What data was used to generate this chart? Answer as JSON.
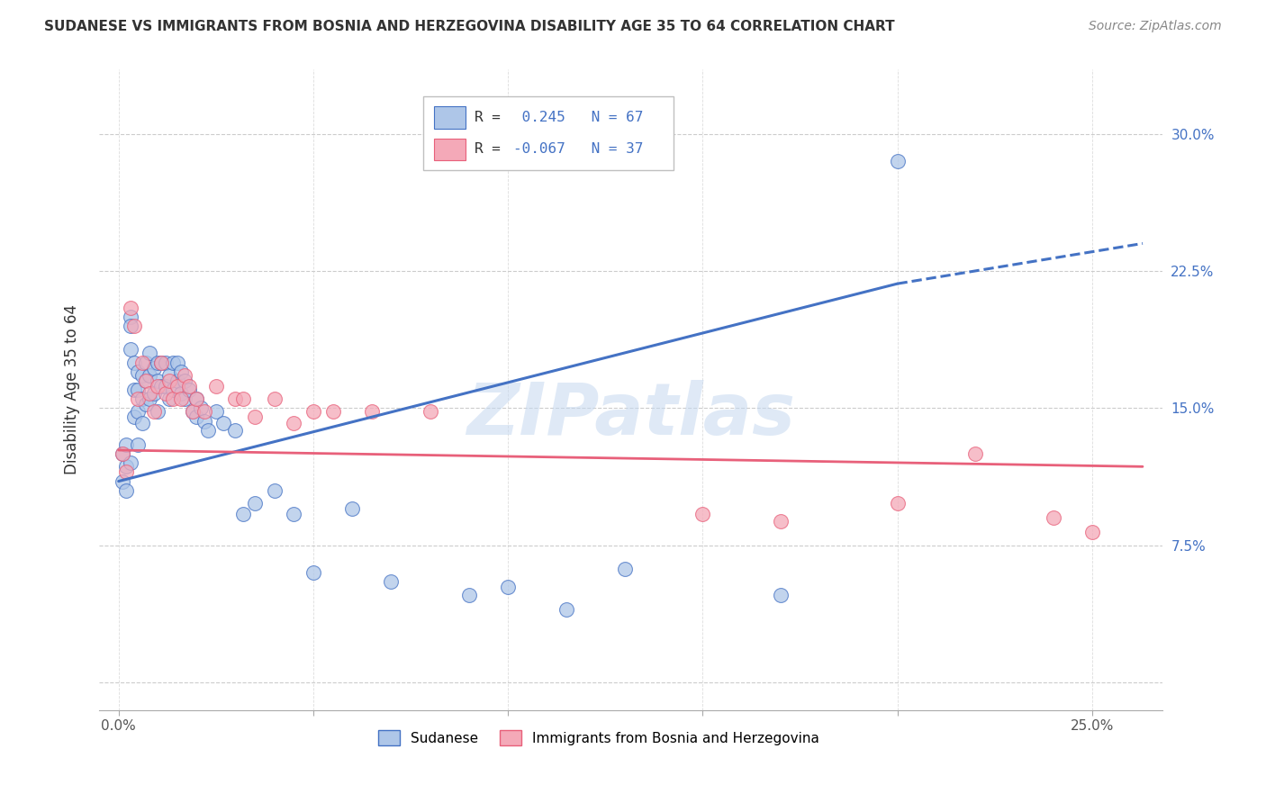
{
  "title": "SUDANESE VS IMMIGRANTS FROM BOSNIA AND HERZEGOVINA DISABILITY AGE 35 TO 64 CORRELATION CHART",
  "source": "Source: ZipAtlas.com",
  "xlabel_ticks": [
    0.0,
    0.05,
    0.1,
    0.15,
    0.2,
    0.25
  ],
  "xlabel_labels": [
    "0.0%",
    "",
    "",
    "",
    "",
    "25.0%"
  ],
  "ylabel_ticks": [
    0.0,
    0.075,
    0.15,
    0.225,
    0.3
  ],
  "ylabel_labels": [
    "",
    "7.5%",
    "15.0%",
    "22.5%",
    "30.0%"
  ],
  "xlim": [
    -0.005,
    0.268
  ],
  "ylim": [
    -0.015,
    0.335
  ],
  "r_sudanese": 0.245,
  "n_sudanese": 67,
  "r_bosnia": -0.067,
  "n_bosnia": 37,
  "color_sudanese": "#aec6e8",
  "color_bosnia": "#f4a9b8",
  "trend_color_sudanese": "#4472c4",
  "trend_color_bosnia": "#e8607a",
  "watermark": "ZIPatlas",
  "legend_label_1": "Sudanese",
  "legend_label_2": "Immigrants from Bosnia and Herzegovina",
  "trend_s_x0": 0.0,
  "trend_s_y0": 0.11,
  "trend_s_x1": 0.2,
  "trend_s_y1": 0.218,
  "trend_s_dash_x1": 0.263,
  "trend_s_dash_y1": 0.24,
  "trend_b_x0": 0.0,
  "trend_b_y0": 0.127,
  "trend_b_x1": 0.263,
  "trend_b_y1": 0.118,
  "sudanese_x": [
    0.001,
    0.001,
    0.002,
    0.002,
    0.002,
    0.003,
    0.003,
    0.003,
    0.003,
    0.004,
    0.004,
    0.004,
    0.005,
    0.005,
    0.005,
    0.005,
    0.006,
    0.006,
    0.006,
    0.007,
    0.007,
    0.007,
    0.008,
    0.008,
    0.008,
    0.009,
    0.009,
    0.01,
    0.01,
    0.01,
    0.011,
    0.011,
    0.012,
    0.012,
    0.013,
    0.013,
    0.014,
    0.014,
    0.015,
    0.015,
    0.016,
    0.016,
    0.017,
    0.017,
    0.018,
    0.019,
    0.02,
    0.02,
    0.021,
    0.022,
    0.023,
    0.025,
    0.027,
    0.03,
    0.032,
    0.035,
    0.04,
    0.045,
    0.05,
    0.06,
    0.07,
    0.09,
    0.1,
    0.115,
    0.13,
    0.17,
    0.2
  ],
  "sudanese_y": [
    0.125,
    0.11,
    0.13,
    0.118,
    0.105,
    0.2,
    0.195,
    0.182,
    0.12,
    0.175,
    0.16,
    0.145,
    0.17,
    0.16,
    0.148,
    0.13,
    0.168,
    0.155,
    0.142,
    0.175,
    0.165,
    0.152,
    0.18,
    0.168,
    0.155,
    0.172,
    0.158,
    0.175,
    0.165,
    0.148,
    0.175,
    0.162,
    0.175,
    0.162,
    0.168,
    0.155,
    0.175,
    0.16,
    0.175,
    0.165,
    0.17,
    0.158,
    0.165,
    0.155,
    0.16,
    0.148,
    0.155,
    0.145,
    0.15,
    0.143,
    0.138,
    0.148,
    0.142,
    0.138,
    0.092,
    0.098,
    0.105,
    0.092,
    0.06,
    0.095,
    0.055,
    0.048,
    0.052,
    0.04,
    0.062,
    0.048,
    0.285
  ],
  "bosnia_x": [
    0.001,
    0.002,
    0.003,
    0.004,
    0.005,
    0.006,
    0.007,
    0.008,
    0.009,
    0.01,
    0.011,
    0.012,
    0.013,
    0.014,
    0.015,
    0.016,
    0.017,
    0.018,
    0.019,
    0.02,
    0.022,
    0.025,
    0.03,
    0.032,
    0.035,
    0.04,
    0.045,
    0.05,
    0.055,
    0.065,
    0.08,
    0.15,
    0.17,
    0.2,
    0.22,
    0.24,
    0.25
  ],
  "bosnia_y": [
    0.125,
    0.115,
    0.205,
    0.195,
    0.155,
    0.175,
    0.165,
    0.158,
    0.148,
    0.162,
    0.175,
    0.158,
    0.165,
    0.155,
    0.162,
    0.155,
    0.168,
    0.162,
    0.148,
    0.155,
    0.148,
    0.162,
    0.155,
    0.155,
    0.145,
    0.155,
    0.142,
    0.148,
    0.148,
    0.148,
    0.148,
    0.092,
    0.088,
    0.098,
    0.125,
    0.09,
    0.082
  ]
}
